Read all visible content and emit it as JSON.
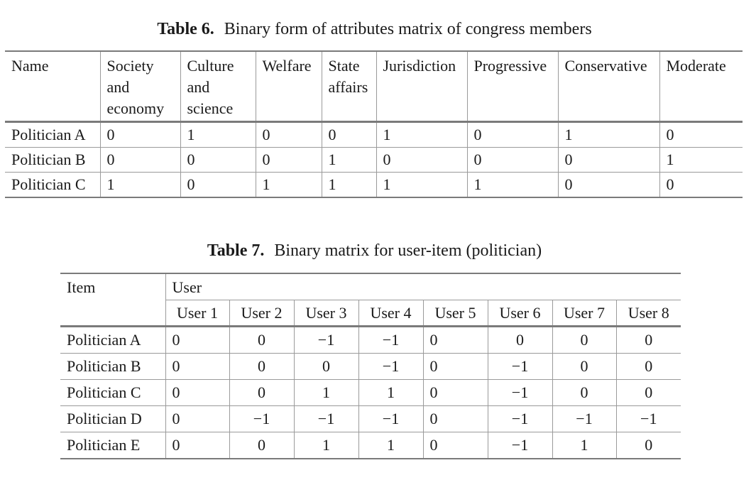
{
  "table6": {
    "caption_num": "Table 6.",
    "caption_text": "Binary form of attributes matrix of congress members",
    "headers": [
      [
        "Name"
      ],
      [
        "Society",
        "and",
        "economy"
      ],
      [
        "Culture",
        "and",
        "science"
      ],
      [
        "Welfare"
      ],
      [
        "State",
        "affairs"
      ],
      [
        "Jurisdiction"
      ],
      [
        "Progressive"
      ],
      [
        "Conservative"
      ],
      [
        "Moderate"
      ]
    ],
    "rows": [
      [
        "Politician A",
        "0",
        "1",
        "0",
        "0",
        "1",
        "0",
        "1",
        "0"
      ],
      [
        "Politician B",
        "0",
        "0",
        "0",
        "1",
        "0",
        "0",
        "0",
        "1"
      ],
      [
        "Politician C",
        "1",
        "0",
        "1",
        "1",
        "1",
        "1",
        "0",
        "0"
      ]
    ]
  },
  "table7": {
    "caption_num": "Table 7.",
    "caption_text": "Binary matrix for user-item (politician)",
    "item_header": "Item",
    "user_header": "User",
    "users": [
      "User 1",
      "User 2",
      "User 3",
      "User 4",
      "User 5",
      "User 6",
      "User 7",
      "User 8"
    ],
    "rows": [
      [
        "Politician A",
        "0",
        "0",
        "−1",
        "−1",
        "0",
        "0",
        "0",
        "0"
      ],
      [
        "Politician B",
        "0",
        "0",
        "0",
        "−1",
        "0",
        "−1",
        "0",
        "0"
      ],
      [
        "Politician C",
        "0",
        "0",
        "1",
        "1",
        "0",
        "−1",
        "0",
        "0"
      ],
      [
        "Politician D",
        "0",
        "−1",
        "−1",
        "−1",
        "0",
        "−1",
        "−1",
        "−1"
      ],
      [
        "Politician E",
        "0",
        "0",
        "1",
        "1",
        "0",
        "−1",
        "1",
        "0"
      ]
    ]
  }
}
